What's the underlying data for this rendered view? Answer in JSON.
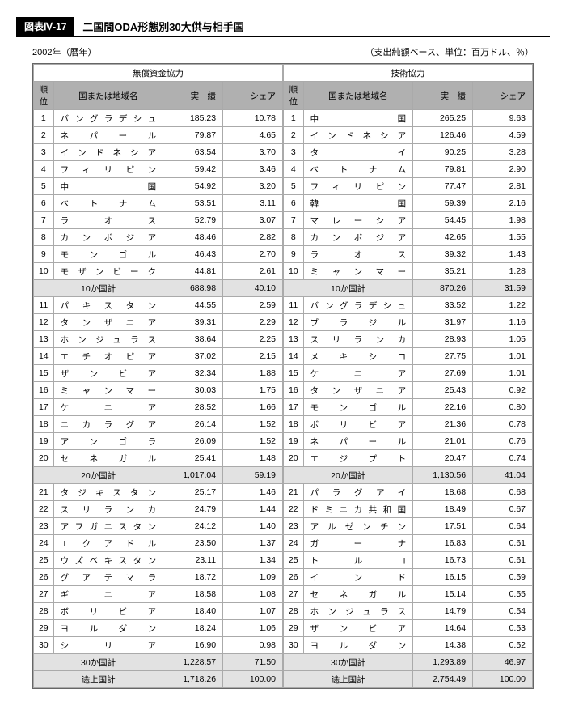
{
  "header": {
    "tag": "図表Ⅳ-17",
    "title": "二国間ODA形態別30大供与相手国"
  },
  "meta": {
    "left": "2002年（暦年）",
    "right": "（支出純額ベース、単位：百万ドル、％）"
  },
  "sections": [
    {
      "title": "無償資金協力"
    },
    {
      "title": "技術協力"
    }
  ],
  "cols": {
    "rank": "順位",
    "country": "国または地域名",
    "result": "実　績",
    "share": "シェア"
  },
  "left": {
    "rows1": [
      {
        "r": "1",
        "c": "バングラデシュ",
        "v": "185.23",
        "s": "10.78"
      },
      {
        "r": "2",
        "c": "ネパール",
        "v": "79.87",
        "s": "4.65"
      },
      {
        "r": "3",
        "c": "インドネシア",
        "v": "63.54",
        "s": "3.70"
      },
      {
        "r": "4",
        "c": "フィリピン",
        "v": "59.42",
        "s": "3.46"
      },
      {
        "r": "5",
        "c": "中国",
        "v": "54.92",
        "s": "3.20"
      },
      {
        "r": "6",
        "c": "ベトナム",
        "v": "53.51",
        "s": "3.11"
      },
      {
        "r": "7",
        "c": "ラオス",
        "v": "52.79",
        "s": "3.07"
      },
      {
        "r": "8",
        "c": "カンボジア",
        "v": "48.46",
        "s": "2.82"
      },
      {
        "r": "9",
        "c": "モンゴル",
        "v": "46.43",
        "s": "2.70"
      },
      {
        "r": "10",
        "c": "モザンビーク",
        "v": "44.81",
        "s": "2.61"
      }
    ],
    "sum10": {
      "label": "10か国計",
      "v": "688.98",
      "s": "40.10"
    },
    "rows2": [
      {
        "r": "11",
        "c": "パキスタン",
        "v": "44.55",
        "s": "2.59"
      },
      {
        "r": "12",
        "c": "タンザニア",
        "v": "39.31",
        "s": "2.29"
      },
      {
        "r": "13",
        "c": "ホンジュラス",
        "v": "38.64",
        "s": "2.25"
      },
      {
        "r": "14",
        "c": "エチオピア",
        "v": "37.02",
        "s": "2.15"
      },
      {
        "r": "15",
        "c": "ザンビア",
        "v": "32.34",
        "s": "1.88"
      },
      {
        "r": "16",
        "c": "ミャンマー",
        "v": "30.03",
        "s": "1.75"
      },
      {
        "r": "17",
        "c": "ケニア",
        "v": "28.52",
        "s": "1.66"
      },
      {
        "r": "18",
        "c": "ニカラグア",
        "v": "26.14",
        "s": "1.52"
      },
      {
        "r": "19",
        "c": "アンゴラ",
        "v": "26.09",
        "s": "1.52"
      },
      {
        "r": "20",
        "c": "セネガル",
        "v": "25.41",
        "s": "1.48"
      }
    ],
    "sum20": {
      "label": "20か国計",
      "v": "1,017.04",
      "s": "59.19"
    },
    "rows3": [
      {
        "r": "21",
        "c": "タジキスタン",
        "v": "25.17",
        "s": "1.46"
      },
      {
        "r": "22",
        "c": "スリランカ",
        "v": "24.79",
        "s": "1.44"
      },
      {
        "r": "23",
        "c": "アフガニスタン",
        "v": "24.12",
        "s": "1.40"
      },
      {
        "r": "24",
        "c": "エクアドル",
        "v": "23.50",
        "s": "1.37"
      },
      {
        "r": "25",
        "c": "ウズベキスタン",
        "v": "23.11",
        "s": "1.34"
      },
      {
        "r": "26",
        "c": "グアテマラ",
        "v": "18.72",
        "s": "1.09"
      },
      {
        "r": "27",
        "c": "ギニア",
        "v": "18.58",
        "s": "1.08"
      },
      {
        "r": "28",
        "c": "ボリビア",
        "v": "18.40",
        "s": "1.07"
      },
      {
        "r": "29",
        "c": "ヨルダン",
        "v": "18.24",
        "s": "1.06"
      },
      {
        "r": "30",
        "c": "シリア",
        "v": "16.90",
        "s": "0.98"
      }
    ],
    "sum30": {
      "label": "30か国計",
      "v": "1,228.57",
      "s": "71.50"
    },
    "sumDev": {
      "label": "途上国計",
      "v": "1,718.26",
      "s": "100.00"
    }
  },
  "right": {
    "rows1": [
      {
        "r": "1",
        "c": "中国",
        "v": "265.25",
        "s": "9.63"
      },
      {
        "r": "2",
        "c": "インドネシア",
        "v": "126.46",
        "s": "4.59"
      },
      {
        "r": "3",
        "c": "タイ",
        "v": "90.25",
        "s": "3.28"
      },
      {
        "r": "4",
        "c": "ベトナム",
        "v": "79.81",
        "s": "2.90"
      },
      {
        "r": "5",
        "c": "フィリピン",
        "v": "77.47",
        "s": "2.81"
      },
      {
        "r": "6",
        "c": "韓国",
        "v": "59.39",
        "s": "2.16"
      },
      {
        "r": "7",
        "c": "マレーシア",
        "v": "54.45",
        "s": "1.98"
      },
      {
        "r": "8",
        "c": "カンボジア",
        "v": "42.65",
        "s": "1.55"
      },
      {
        "r": "9",
        "c": "ラオス",
        "v": "39.32",
        "s": "1.43"
      },
      {
        "r": "10",
        "c": "ミャンマー",
        "v": "35.21",
        "s": "1.28"
      }
    ],
    "sum10": {
      "label": "10か国計",
      "v": "870.26",
      "s": "31.59"
    },
    "rows2": [
      {
        "r": "11",
        "c": "バングラデシュ",
        "v": "33.52",
        "s": "1.22"
      },
      {
        "r": "12",
        "c": "ブラジル",
        "v": "31.97",
        "s": "1.16"
      },
      {
        "r": "13",
        "c": "スリランカ",
        "v": "28.93",
        "s": "1.05"
      },
      {
        "r": "14",
        "c": "メキシコ",
        "v": "27.75",
        "s": "1.01"
      },
      {
        "r": "15",
        "c": "ケニア",
        "v": "27.69",
        "s": "1.01"
      },
      {
        "r": "16",
        "c": "タンザニア",
        "v": "25.43",
        "s": "0.92"
      },
      {
        "r": "17",
        "c": "モンゴル",
        "v": "22.16",
        "s": "0.80"
      },
      {
        "r": "18",
        "c": "ボリビア",
        "v": "21.36",
        "s": "0.78"
      },
      {
        "r": "19",
        "c": "ネパール",
        "v": "21.01",
        "s": "0.76"
      },
      {
        "r": "20",
        "c": "エジプト",
        "v": "20.47",
        "s": "0.74"
      }
    ],
    "sum20": {
      "label": "20か国計",
      "v": "1,130.56",
      "s": "41.04"
    },
    "rows3": [
      {
        "r": "21",
        "c": "パラグアイ",
        "v": "18.68",
        "s": "0.68"
      },
      {
        "r": "22",
        "c": "ドミニカ共和国",
        "v": "18.49",
        "s": "0.67"
      },
      {
        "r": "23",
        "c": "アルゼンチン",
        "v": "17.51",
        "s": "0.64"
      },
      {
        "r": "24",
        "c": "ガーナ",
        "v": "16.83",
        "s": "0.61"
      },
      {
        "r": "25",
        "c": "トルコ",
        "v": "16.73",
        "s": "0.61"
      },
      {
        "r": "26",
        "c": "インド",
        "v": "16.15",
        "s": "0.59"
      },
      {
        "r": "27",
        "c": "セネガル",
        "v": "15.14",
        "s": "0.55"
      },
      {
        "r": "28",
        "c": "ホンジュラス",
        "v": "14.79",
        "s": "0.54"
      },
      {
        "r": "29",
        "c": "ザンビア",
        "v": "14.64",
        "s": "0.53"
      },
      {
        "r": "30",
        "c": "ヨルダン",
        "v": "14.38",
        "s": "0.52"
      }
    ],
    "sum30": {
      "label": "30か国計",
      "v": "1,293.89",
      "s": "46.97"
    },
    "sumDev": {
      "label": "途上国計",
      "v": "2,754.49",
      "s": "100.00"
    }
  }
}
